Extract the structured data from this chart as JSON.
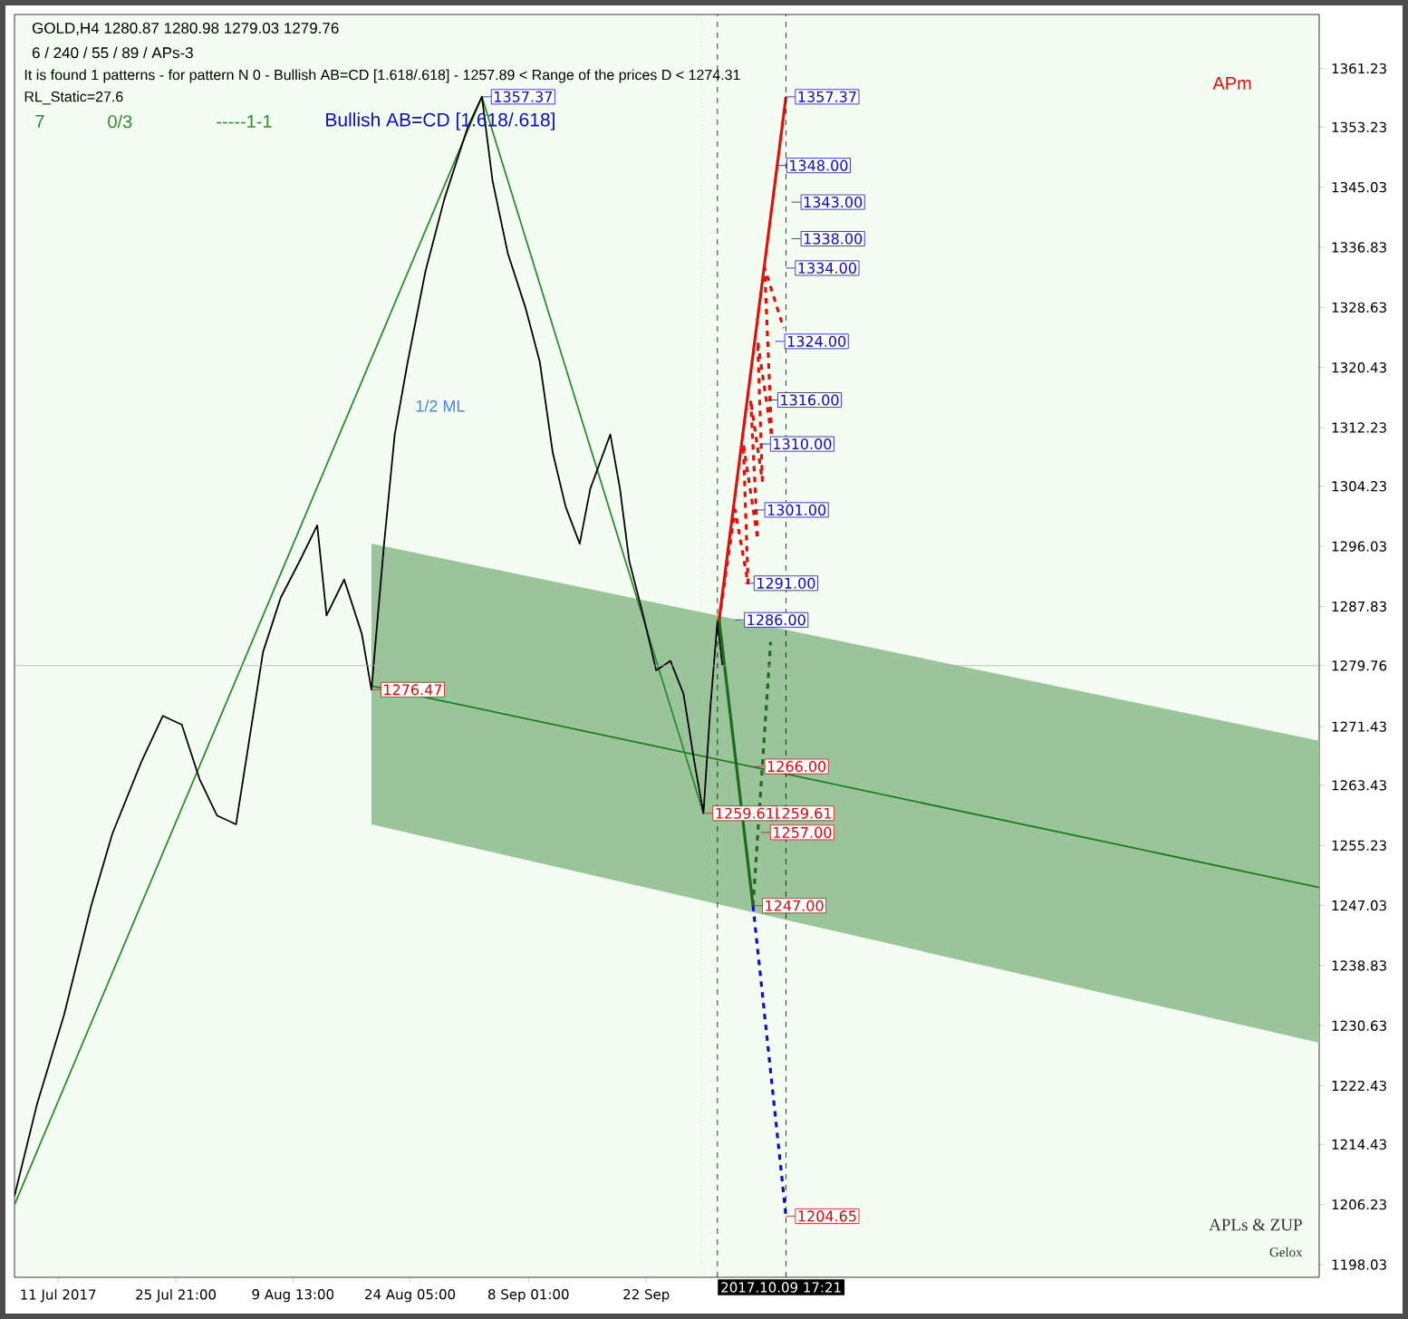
{
  "chart_data": {
    "type": "line",
    "title": "GOLD,H4  1280.87 1280.98 1279.03 1279.76",
    "subtitle": "6 / 240 / 55 / 89 / APs-3",
    "xlim": [
      "2017-07-05T16:00",
      "2017-12-16T02:00"
    ],
    "ylim": [
      1196.3,
      1368.6
    ],
    "xticks": [
      {
        "value": "2017-07-11T03:00",
        "label": "11 Jul 2017"
      },
      {
        "value": "2017-07-25T21:00",
        "label": "25 Jul 21:00"
      },
      {
        "value": "2017-08-09T13:00",
        "label": "9 Aug 13:00"
      },
      {
        "value": "2017-08-24T05:00",
        "label": "24 Aug 05:00"
      },
      {
        "value": "2017-09-08T01:00",
        "label": "8 Sep 01:00"
      },
      {
        "value": "2017-09-22T19:00",
        "label": "22 Sep"
      }
    ],
    "yticks": [
      1198.03,
      1206.23,
      1214.43,
      1222.43,
      1230.63,
      1238.83,
      1247.03,
      1255.23,
      1263.43,
      1271.43,
      1279.76,
      1287.83,
      1296.03,
      1304.23,
      1312.23,
      1320.43,
      1328.63,
      1336.83,
      1345.03,
      1353.23,
      1361.23
    ],
    "series": [
      {
        "color": "#1e7b1e",
        "line_style": "solid",
        "x": [
          "2017-08-19T09:00",
          "2017-12-16T02:00"
        ],
        "values": [
          1277.0,
          1249.5
        ],
        "lower": [
          1258.1,
          1228.3
        ],
        "upper": [
          1296.4,
          1269.5
        ]
      },
      {
        "color": "#2e8b2e",
        "line_style": "solid",
        "x": [
          "2017-07-05T16:00",
          "2017-09-02T05:00",
          "2017-09-29T23:00"
        ],
        "values": [
          1206.2,
          1357.37,
          1259.61
        ]
      },
      {
        "color": "#000000",
        "line_style": "solid",
        "x": [
          "2017-07-05T16:00",
          "2017-07-08T11:00",
          "2017-07-11T21:00",
          "2017-07-15T06:00",
          "2017-07-17T22:00",
          "2017-07-21T14:00",
          "2017-07-24T06:00",
          "2017-07-26T15:00",
          "2017-07-28T20:00",
          "2017-07-31T01:00",
          "2017-08-02T10:00",
          "2017-08-05T19:00",
          "2017-08-08T00:00",
          "2017-08-10T09:00",
          "2017-08-12T14:00",
          "2017-08-13T18:00",
          "2017-08-15T23:00",
          "2017-08-18T04:00",
          "2017-08-19T09:00",
          "2017-08-20T23:00",
          "2017-08-22T07:00",
          "2017-08-23T22:00",
          "2017-08-26T03:00",
          "2017-08-28T12:00",
          "2017-08-31T11:00",
          "2017-09-02T05:00",
          "2017-09-03T13:00",
          "2017-09-05T11:00",
          "2017-09-07T16:00",
          "2017-09-09T11:00",
          "2017-09-11T02:00",
          "2017-09-12T17:00",
          "2017-09-14T11:00",
          "2017-09-15T19:00",
          "2017-09-18T07:00",
          "2017-09-19T12:00",
          "2017-09-20T16:00",
          "2017-09-22T10:00",
          "2017-09-24T01:00",
          "2017-09-25T20:00",
          "2017-09-27T11:00",
          "2017-09-28T19:00",
          "2017-09-29T23:00",
          "2017-09-30T20:00",
          "2017-10-01T17:00",
          "2017-10-02T08:00"
        ],
        "values": [
          1207.4,
          1219.8,
          1232.1,
          1246.9,
          1256.8,
          1266.7,
          1272.9,
          1271.7,
          1264.3,
          1259.3,
          1258.1,
          1281.6,
          1289.0,
          1294.0,
          1298.9,
          1286.6,
          1291.5,
          1284.1,
          1276.47,
          1296.4,
          1311.3,
          1321.2,
          1333.5,
          1343.4,
          1353.3,
          1357.37,
          1345.9,
          1336.0,
          1328.6,
          1321.2,
          1308.8,
          1301.4,
          1296.4,
          1303.9,
          1311.3,
          1303.9,
          1294.0,
          1286.6,
          1279.1,
          1280.4,
          1275.9,
          1266.8,
          1259.61,
          1274.2,
          1285.8,
          1279.76
        ]
      },
      {
        "color": "#e01010",
        "line_style": "solid",
        "x": [
          "2017-10-01T22:00",
          "2017-10-10T07:00"
        ],
        "values": [
          1286.0,
          1357.37
        ]
      },
      {
        "color": "#e01010",
        "line_style": "dashed",
        "x": [
          "2017-10-01T22:00",
          "2017-10-03T22:00",
          "2017-10-05T13:00",
          "2017-10-04T23:00",
          "2017-10-06T18:00",
          "2017-10-05T21:00",
          "2017-10-07T08:00",
          "2017-10-06T18:00",
          "2017-10-08T12:00",
          "2017-10-07T15:00",
          "2017-10-10T00:00"
        ],
        "values": [
          1286.0,
          1301.0,
          1291.0,
          1310.0,
          1297.0,
          1316.0,
          1305.0,
          1324.0,
          1311.0,
          1334.0,
          1325.8
        ]
      },
      {
        "color": "#1e6b1e",
        "line_style": "solid",
        "x": [
          "2017-10-01T22:00",
          "2017-10-06T04:00"
        ],
        "values": [
          1286.0,
          1247.0
        ]
      },
      {
        "color": "#1e6b1e",
        "line_style": "dashed",
        "x": [
          "2017-10-06T04:00",
          "2017-10-08T09:00"
        ],
        "values": [
          1247.0,
          1283.0
        ]
      },
      {
        "color": "#1010c0",
        "line_style": "dashed",
        "x": [
          "2017-10-06T04:00",
          "2017-10-10T07:00"
        ],
        "values": [
          1247.0,
          1204.65
        ]
      }
    ],
    "ref_lines": [
      {
        "axis": "y",
        "value": 1279.76,
        "color": "#b0b0b0",
        "line_style": "solid"
      },
      {
        "axis": "x",
        "value": "2017-10-01T17:00",
        "color": "#000000",
        "line_style": "dashed"
      },
      {
        "axis": "x",
        "value": "2017-10-10T07:00",
        "color": "#000000",
        "line_style": "dashed"
      },
      {
        "axis": "x",
        "value": "2017-09-29T16:00",
        "color": "#f0a040",
        "line_style": "dotted"
      }
    ],
    "annotations": [
      {
        "text": "1357.37",
        "x": "2017-10-10T07:00",
        "y": 1357.37
      },
      {
        "text": "1348.00",
        "x": "2017-10-09T05:00",
        "y": 1348.0
      },
      {
        "text": "1343.00",
        "x": "2017-10-11T00:00",
        "y": 1343.0
      },
      {
        "text": "1338.00",
        "x": "2017-10-11T00:00",
        "y": 1338.0
      },
      {
        "text": "1334.00",
        "x": "2017-10-10T07:00",
        "y": 1334.0
      },
      {
        "text": "1324.00",
        "x": "2017-10-08T23:00",
        "y": 1324.0
      },
      {
        "text": "1316.00",
        "x": "2017-10-08T02:00",
        "y": 1316.0
      },
      {
        "text": "1310.00",
        "x": "2017-10-07T04:00",
        "y": 1310.0
      },
      {
        "text": "1301.00",
        "x": "2017-10-06T11:00",
        "y": 1301.0
      },
      {
        "text": "1291.00",
        "x": "2017-10-05T03:00",
        "y": 1291.0
      },
      {
        "text": "1286.00",
        "x": "2017-10-03T22:00",
        "y": 1286.0
      },
      {
        "text": "1266.00",
        "x": "2017-10-06T11:00",
        "y": 1266.0
      },
      {
        "text": "1259.61",
        "x": "2017-10-07T04:00",
        "y": 1259.61
      },
      {
        "text": "1257.00",
        "x": "2017-10-07T04:00",
        "y": 1257.0
      },
      {
        "text": "1247.00",
        "x": "2017-10-06T04:00",
        "y": 1247.0
      },
      {
        "text": "1204.65",
        "x": "2017-10-10T07:00",
        "y": 1204.65
      },
      {
        "text": "1357.37",
        "x": "2017-09-02T05:00",
        "y": 1357.37
      },
      {
        "text": "1276.47",
        "x": "2017-08-19T09:00",
        "y": 1276.47
      },
      {
        "text": "1259.61",
        "x": "2017-09-29T23:00",
        "y": 1259.61
      },
      "It is found 1 patterns  -  for pattern N 0 - Bullish AB=CD [1.618/.618] - 1257.89 < Range of the prices D < 1274.31",
      "RL_Static=27.6",
      "7",
      "0/3",
      "-----1-1",
      "Bullish AB=CD [1.618/.618]",
      "APm",
      "APLs & ZUP",
      "Gelox",
      "1/2 ML",
      "2017.10.09 17:21"
    ]
  }
}
